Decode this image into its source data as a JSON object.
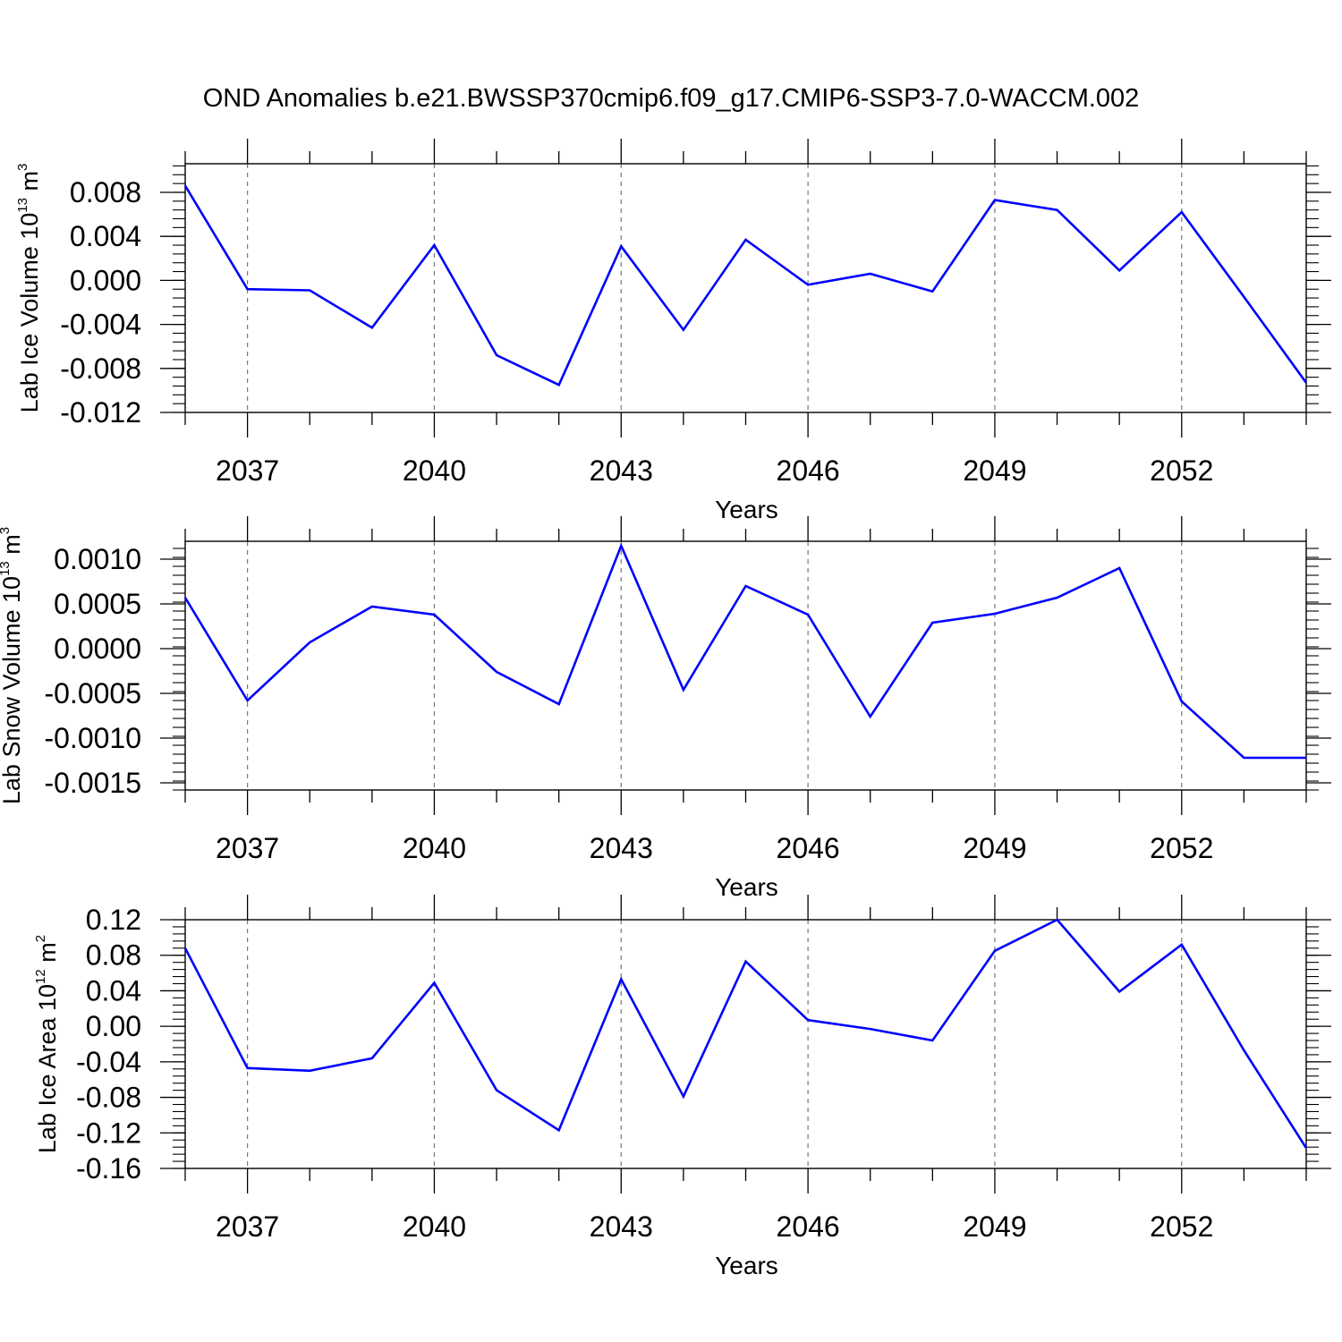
{
  "title": "OND Anomalies b.e21.BWSSP370cmip6.f09_g17.CMIP6-SSP3-7.0-WACCM.002",
  "line_color": "#0000ff",
  "chart_data": [
    {
      "type": "line",
      "ylabel": {
        "text": "Lab Ice Volume 10",
        "exp": "13",
        "unit": " m",
        "unit_exp": "3"
      },
      "xlabel": "Years",
      "xlim": [
        2036,
        2054
      ],
      "ylim": [
        -0.012,
        0.0106
      ],
      "yticks": [
        -0.012,
        -0.008,
        -0.004,
        0.0,
        0.004,
        0.008
      ],
      "ytick_labels": [
        "-0.012",
        "-0.008",
        "-0.004",
        "0.000",
        "0.004",
        "0.008"
      ],
      "yminor_step": 0.0008,
      "xticks": [
        2037,
        2040,
        2043,
        2046,
        2049,
        2052
      ],
      "xtick_labels": [
        "2037",
        "2040",
        "2043",
        "2046",
        "2049",
        "2052"
      ],
      "grid": "vertical dashed at major x ticks",
      "series": [
        {
          "x": [
            2036,
            2037,
            2038,
            2039,
            2040,
            2041,
            2042,
            2043,
            2044,
            2045,
            2046,
            2047,
            2048,
            2049,
            2050,
            2051,
            2052,
            2053,
            2054
          ],
          "y": [
            0.0086,
            -0.0008,
            -0.0009,
            -0.0043,
            0.0032,
            -0.0068,
            -0.0095,
            0.0031,
            -0.0045,
            0.0037,
            -0.0004,
            0.0006,
            -0.001,
            0.0073,
            0.0064,
            0.0009,
            0.0062,
            -0.0015,
            -0.0093
          ]
        }
      ]
    },
    {
      "type": "line",
      "ylabel": {
        "text": "Lab Snow Volume 10",
        "exp": "13",
        "unit": " m",
        "unit_exp": "3"
      },
      "xlabel": "Years",
      "xlim": [
        2036,
        2054
      ],
      "ylim": [
        -0.00158,
        0.0012
      ],
      "yticks": [
        -0.0015,
        -0.001,
        -0.0005,
        0.0,
        0.0005,
        0.001
      ],
      "ytick_labels": [
        "-0.0015",
        "-0.0010",
        "-0.0005",
        "0.0000",
        "0.0005",
        "0.0010"
      ],
      "yminor_step": 0.0001,
      "xticks": [
        2037,
        2040,
        2043,
        2046,
        2049,
        2052
      ],
      "xtick_labels": [
        "2037",
        "2040",
        "2043",
        "2046",
        "2049",
        "2052"
      ],
      "grid": "vertical dashed at major x ticks",
      "series": [
        {
          "x": [
            2036,
            2037,
            2038,
            2039,
            2040,
            2041,
            2042,
            2043,
            2044,
            2045,
            2046,
            2047,
            2048,
            2049,
            2050,
            2051,
            2052,
            2053,
            2054
          ],
          "y": [
            0.00057,
            -0.00058,
            7e-05,
            0.00047,
            0.00038,
            -0.00026,
            -0.00062,
            0.00115,
            -0.00046,
            0.0007,
            0.00038,
            -0.00076,
            0.00029,
            0.00039,
            0.00057,
            0.0009,
            -0.00059,
            -0.00122,
            -0.00122
          ]
        }
      ]
    },
    {
      "type": "line",
      "ylabel": {
        "text": "Lab Ice Area 10",
        "exp": "12",
        "unit": " m",
        "unit_exp": "2"
      },
      "xlabel": "Years",
      "xlim": [
        2036,
        2054
      ],
      "ylim": [
        -0.16,
        0.12
      ],
      "yticks": [
        -0.16,
        -0.12,
        -0.08,
        -0.04,
        0.0,
        0.04,
        0.08,
        0.12
      ],
      "ytick_labels": [
        "-0.16",
        "-0.12",
        "-0.08",
        "-0.04",
        "0.00",
        "0.04",
        "0.08",
        "0.12"
      ],
      "yminor_step": 0.008,
      "xticks": [
        2037,
        2040,
        2043,
        2046,
        2049,
        2052
      ],
      "xtick_labels": [
        "2037",
        "2040",
        "2043",
        "2046",
        "2049",
        "2052"
      ],
      "grid": "vertical dashed at major x ticks",
      "series": [
        {
          "x": [
            2036,
            2037,
            2038,
            2039,
            2040,
            2041,
            2042,
            2043,
            2044,
            2045,
            2046,
            2047,
            2048,
            2049,
            2050,
            2051,
            2052,
            2053,
            2054
          ],
          "y": [
            0.088,
            -0.047,
            -0.05,
            -0.036,
            0.049,
            -0.072,
            -0.117,
            0.053,
            -0.079,
            0.073,
            0.007,
            -0.003,
            -0.016,
            0.085,
            0.12,
            0.039,
            0.092,
            -0.027,
            -0.137
          ]
        }
      ]
    }
  ]
}
